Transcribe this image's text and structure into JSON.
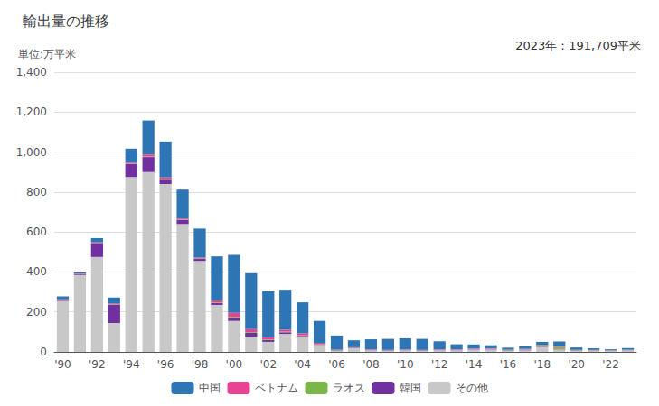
{
  "chart_data": {
    "type": "bar",
    "title": "輸出量の推移",
    "ylabel": "単位:万平米",
    "annotation": "2023年：191,709平米",
    "categories": [
      "'90",
      null,
      "'92",
      null,
      "'94",
      null,
      "'96",
      null,
      "'98",
      null,
      "'00",
      null,
      "'02",
      null,
      "'04",
      null,
      "'06",
      null,
      "'08",
      null,
      "'10",
      null,
      "'12",
      null,
      "'14",
      null,
      "'16",
      null,
      "'18",
      null,
      "'20",
      null,
      "'22",
      null
    ],
    "stacked": true,
    "series": [
      {
        "name": "その他",
        "color": "#c8c8c8",
        "values": [
          255,
          385,
          475,
          145,
          875,
          900,
          840,
          640,
          455,
          235,
          155,
          75,
          50,
          90,
          75,
          35,
          5,
          18,
          8,
          5,
          8,
          5,
          8,
          8,
          12,
          12,
          5,
          8,
          25,
          12,
          5,
          5,
          5,
          8
        ]
      },
      {
        "name": "韓国",
        "color": "#7030a0",
        "values": [
          5,
          5,
          70,
          90,
          65,
          75,
          20,
          20,
          10,
          10,
          15,
          20,
          10,
          8,
          5,
          3,
          2,
          2,
          2,
          2,
          2,
          2,
          2,
          2,
          2,
          2,
          2,
          2,
          2,
          2,
          1,
          1,
          1,
          1
        ]
      },
      {
        "name": "ラオス",
        "color": "#7ab648",
        "values": [
          1,
          1,
          1,
          2,
          2,
          3,
          3,
          2,
          2,
          3,
          5,
          4,
          3,
          3,
          3,
          2,
          2,
          1,
          1,
          1,
          1,
          1,
          1,
          1,
          1,
          2,
          2,
          2,
          5,
          10,
          2,
          2,
          1,
          1
        ]
      },
      {
        "name": "ベトナム",
        "color": "#e84393",
        "values": [
          2,
          2,
          3,
          5,
          5,
          10,
          10,
          5,
          5,
          10,
          20,
          15,
          10,
          10,
          10,
          5,
          3,
          2,
          2,
          2,
          2,
          2,
          2,
          2,
          2,
          2,
          2,
          3,
          3,
          3,
          2,
          2,
          1,
          1
        ]
      },
      {
        "name": "中国",
        "color": "#2e75b6",
        "values": [
          15,
          5,
          20,
          30,
          70,
          170,
          180,
          145,
          145,
          220,
          290,
          280,
          230,
          200,
          155,
          110,
          70,
          35,
          50,
          55,
          55,
          55,
          40,
          25,
          20,
          15,
          10,
          12,
          15,
          25,
          12,
          8,
          5,
          8
        ]
      }
    ],
    "ylim": [
      0,
      1400
    ],
    "yticks": [
      0,
      200,
      400,
      600,
      800,
      {
        "value": 1000,
        "label": "1,000"
      },
      {
        "value": 1200,
        "label": "1,200"
      },
      {
        "value": 1400,
        "label": "1,400"
      }
    ],
    "grid": true,
    "legend": "bottom"
  }
}
